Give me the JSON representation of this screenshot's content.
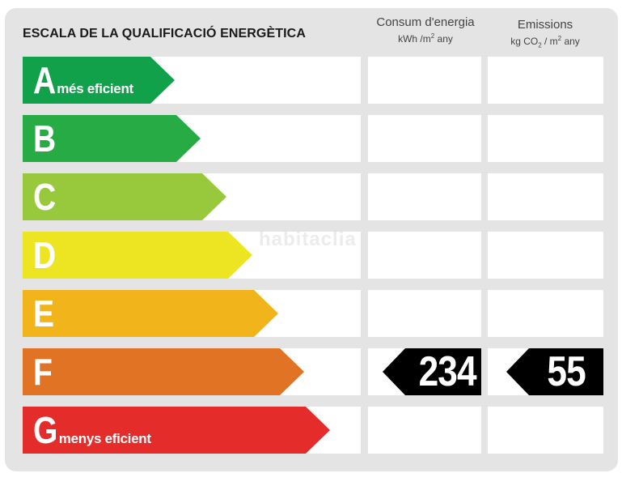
{
  "title": "ESCALA DE LA QUALIFICACIÓ ENERGÈTICA",
  "columns": {
    "consum": {
      "label": "Consum d'energia",
      "unit_pre": "kWh /m",
      "unit_sup": "2",
      "unit_post": " any"
    },
    "emissions": {
      "label": "Emissions",
      "unit_pre": "kg CO",
      "unit_sub": "2",
      "unit_mid": " / m",
      "unit_sup": "2",
      "unit_post": " any"
    }
  },
  "watermark": "habitaclia",
  "ratings": [
    {
      "letter": "A",
      "note": "més eficient",
      "color": "#12a14b"
    },
    {
      "letter": "B",
      "note": "",
      "color": "#27ab45"
    },
    {
      "letter": "C",
      "note": "",
      "color": "#98c93c"
    },
    {
      "letter": "D",
      "note": "",
      "color": "#ede522"
    },
    {
      "letter": "E",
      "note": "",
      "color": "#f1b41a"
    },
    {
      "letter": "F",
      "note": "",
      "color": "#e17325"
    },
    {
      "letter": "G",
      "note": "menys eficient",
      "color": "#e42d2a"
    }
  ],
  "result": {
    "rating": "F",
    "consum_value": "234",
    "emissions_value": "55"
  }
}
